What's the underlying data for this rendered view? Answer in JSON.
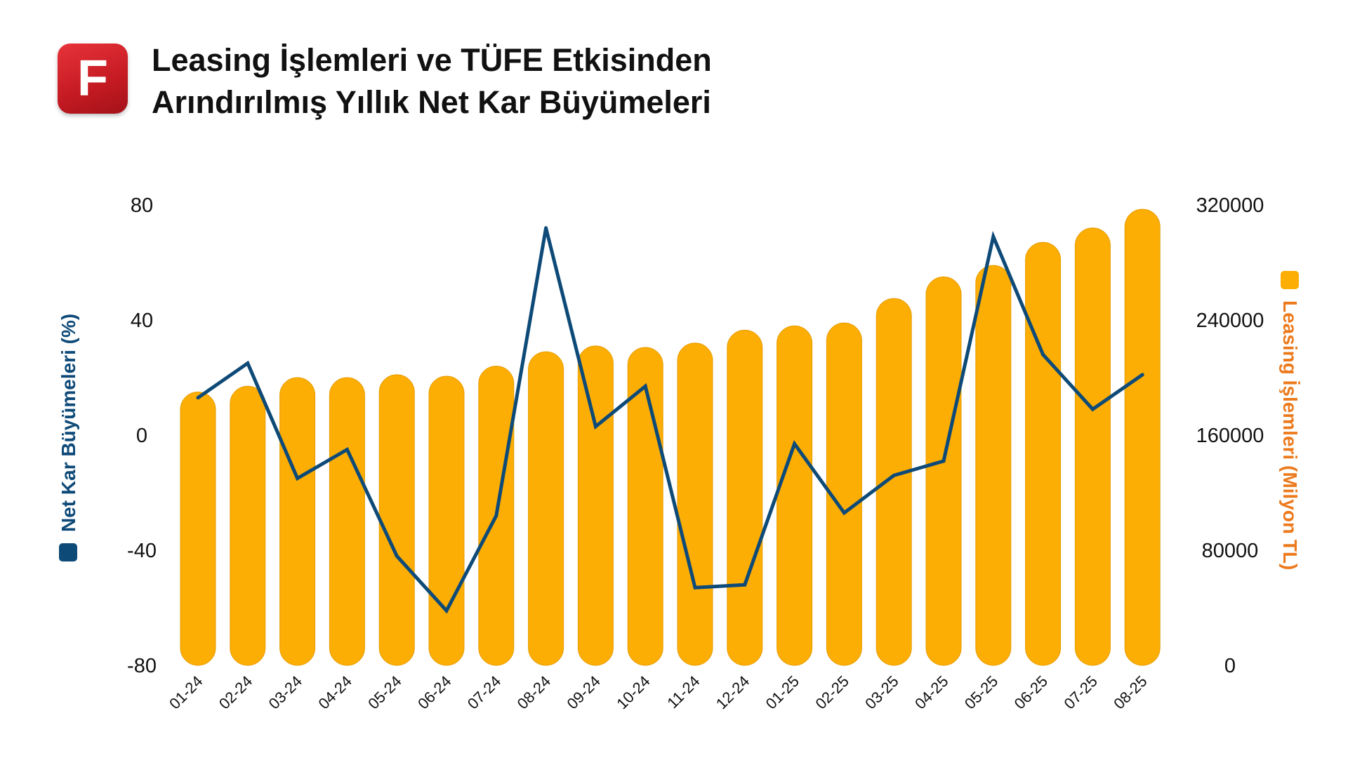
{
  "logo": {
    "letter": "F"
  },
  "title_lines": [
    "Leasing İşlemleri ve TÜFE Etkisinden",
    "Arındırılmış Yıllık Net Kar Büyümeleri"
  ],
  "colors": {
    "bar": "#fcae05",
    "bar_stroke": "#e79c00",
    "line": "#0e4a78",
    "left_axis_title": "#0e4a78",
    "right_axis_title": "#ec7a1c"
  },
  "chart_data": {
    "type": "bar+line",
    "categories": [
      "01-24",
      "02-24",
      "03-24",
      "04-24",
      "05-24",
      "06-24",
      "07-24",
      "08-24",
      "09-24",
      "10-24",
      "11-24",
      "12-24",
      "01-25",
      "02-25",
      "03-25",
      "04-25",
      "05-25",
      "06-25",
      "07-25",
      "08-25"
    ],
    "series": [
      {
        "name": "Leasing İşlemleri (Milyon TL)",
        "type": "bar",
        "axis": "right",
        "values": [
          190000,
          194000,
          200000,
          200000,
          202000,
          201000,
          208000,
          218000,
          222000,
          221000,
          224000,
          233000,
          236000,
          238000,
          255000,
          270000,
          278000,
          294000,
          304000,
          317000
        ]
      },
      {
        "name": "Net Kar Büyümeleri (%)",
        "type": "line",
        "axis": "left",
        "values": [
          13,
          25,
          -15,
          -5,
          -42,
          -61,
          -28,
          72,
          3,
          17,
          -53,
          -52,
          -3,
          -27,
          -14,
          -9,
          69,
          28,
          9,
          21
        ]
      }
    ],
    "y_left": {
      "label": "Net Kar Büyümeleri (%)",
      "range": [
        -80,
        80
      ],
      "ticks": [
        "80",
        "40",
        "0",
        "-40",
        "-80"
      ]
    },
    "y_right": {
      "label": "Leasing İşlemleri (Milyon TL)",
      "range": [
        0,
        320000
      ],
      "ticks": [
        "320000",
        "240000",
        "160000",
        "80000",
        "0"
      ]
    },
    "grid": false,
    "legend": "axis-titles"
  }
}
